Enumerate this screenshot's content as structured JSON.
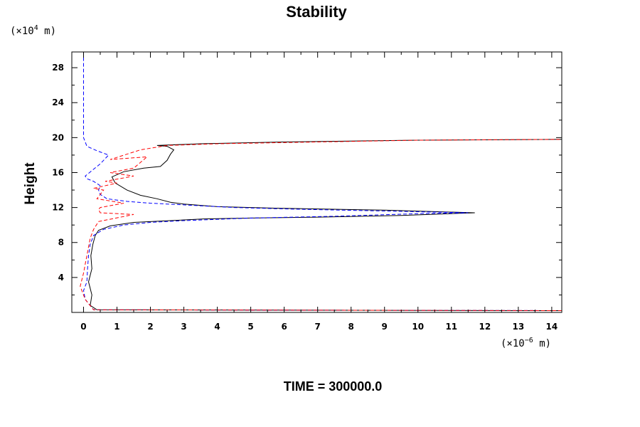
{
  "chart_data": {
    "type": "line",
    "title": "Stability",
    "xlabel": "",
    "ylabel": "Height",
    "x_unit": {
      "prefix": "(×10",
      "exp": "−6",
      "suffix": " m)"
    },
    "y_unit": {
      "prefix": "(×10",
      "exp": "4",
      "suffix": " m)"
    },
    "footer": "TIME = 300000.0",
    "xlim": [
      -0.35,
      14.3
    ],
    "ylim": [
      0,
      29.8
    ],
    "x_ticks": [
      0,
      1,
      2,
      3,
      4,
      5,
      6,
      7,
      8,
      9,
      10,
      11,
      12,
      13,
      14
    ],
    "x_tick_labels": [
      "0",
      "1",
      "2",
      "3",
      "4",
      "5",
      "6",
      "7",
      "8",
      "9",
      "10",
      "11",
      "12",
      "13",
      "14"
    ],
    "y_ticks": [
      4,
      8,
      12,
      16,
      20,
      24,
      28
    ],
    "y_tick_labels": [
      "4",
      "8",
      "12",
      "16",
      "20",
      "24",
      "28"
    ],
    "grid": false,
    "legend": "none",
    "series": [
      {
        "color": "#000000",
        "style": "solid",
        "x": [
          14.3,
          0.4,
          0.2,
          0.25,
          0.15,
          0.25,
          0.22,
          0.28,
          0.35,
          0.45,
          0.8,
          1.5,
          2.6,
          3.6,
          5.0,
          7.0,
          9.5,
          11.7,
          9.0,
          6.0,
          4.0,
          3.0,
          2.6,
          2.2,
          1.7,
          1.3,
          0.95,
          0.85,
          1.2,
          1.8,
          2.3,
          2.5,
          2.6,
          2.7,
          2.5,
          2.2,
          3.5,
          6.0,
          10.0,
          14.3
        ],
        "y": [
          0.2,
          0.3,
          0.8,
          2.0,
          3.5,
          5.0,
          6.5,
          7.8,
          8.8,
          9.4,
          9.9,
          10.3,
          10.5,
          10.7,
          10.8,
          10.9,
          11.1,
          11.4,
          11.7,
          11.9,
          12.1,
          12.4,
          12.6,
          13.0,
          13.4,
          14.0,
          14.8,
          15.5,
          16.1,
          16.5,
          16.7,
          17.4,
          18.1,
          18.6,
          19.0,
          19.1,
          19.3,
          19.5,
          19.7,
          19.8
        ]
      },
      {
        "color": "#0000ff",
        "style": "dashed",
        "x": [
          14.3,
          0.3,
          0.05,
          0.0,
          0.1,
          0.12,
          0.15,
          0.2,
          0.3,
          0.6,
          1.2,
          2.0,
          3.0,
          5.0,
          7.5,
          10.0,
          11.5,
          9.0,
          6.5,
          4.5,
          3.0,
          2.0,
          1.3,
          0.7,
          0.5,
          0.45,
          0.5,
          0.3,
          0.1,
          0.05,
          0.5,
          0.75,
          0.4,
          0.1,
          0.0,
          0.0,
          0.0
        ],
        "y": [
          0.2,
          0.3,
          1.5,
          2.5,
          3.5,
          5.0,
          6.5,
          7.8,
          8.8,
          9.5,
          10.0,
          10.3,
          10.5,
          10.8,
          11.0,
          11.3,
          11.4,
          11.6,
          11.8,
          12.0,
          12.3,
          12.5,
          12.7,
          13.0,
          13.5,
          14.0,
          14.5,
          15.0,
          15.3,
          15.6,
          17.0,
          18.0,
          18.5,
          19.0,
          20.0,
          25.0,
          29.8
        ]
      },
      {
        "color": "#ff0000",
        "style": "dashed",
        "x": [
          14.3,
          0.3,
          0.05,
          -0.1,
          0.0,
          0.05,
          0.1,
          0.15,
          0.2,
          0.3,
          0.45,
          1.5,
          0.5,
          0.45,
          0.5,
          1.2,
          0.4,
          0.6,
          0.3,
          1.0,
          0.65,
          1.5,
          0.8,
          1.5,
          1.9,
          0.8,
          1.7,
          2.5,
          4.0,
          7.0,
          10.0,
          14.3
        ],
        "y": [
          0.2,
          0.3,
          1.5,
          3.0,
          4.5,
          5.5,
          6.5,
          7.5,
          8.5,
          9.5,
          10.4,
          11.2,
          11.4,
          11.8,
          12.0,
          12.5,
          13.0,
          14.0,
          14.2,
          14.8,
          15.0,
          15.6,
          16.0,
          16.5,
          17.8,
          17.5,
          18.6,
          19.1,
          19.3,
          19.5,
          19.7,
          19.8
        ]
      }
    ]
  }
}
